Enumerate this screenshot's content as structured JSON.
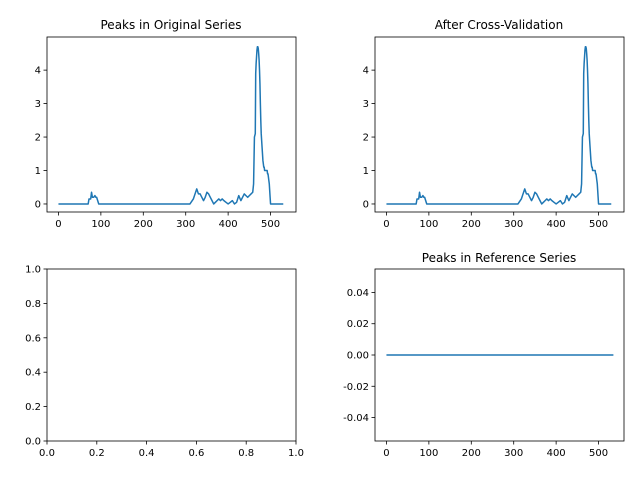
{
  "chart_data": [
    {
      "type": "line",
      "title": "Peaks in Original Series",
      "xlabel": "",
      "ylabel": "",
      "xlim": [
        -27,
        560
      ],
      "ylim": [
        -0.24,
        4.99
      ],
      "grid": false,
      "xticks": [
        0,
        100,
        200,
        300,
        400,
        500
      ],
      "yticks": [
        0,
        1,
        2,
        3,
        4
      ],
      "series": [
        {
          "color": "#1f77b4",
          "x": [
            0,
            70,
            72,
            76,
            78,
            80,
            83,
            86,
            88,
            90,
            95,
            100,
            310,
            318,
            322,
            326,
            330,
            334,
            338,
            342,
            346,
            350,
            354,
            358,
            362,
            366,
            370,
            374,
            378,
            382,
            386,
            390,
            395,
            400,
            405,
            410,
            415,
            420,
            425,
            430,
            434,
            438,
            442,
            446,
            450,
            454,
            458,
            460,
            462,
            464,
            465,
            466,
            467,
            468,
            469,
            470,
            471,
            472,
            473,
            474,
            475,
            476,
            477,
            478,
            479,
            480,
            481,
            482,
            483,
            484,
            485,
            486,
            487,
            488,
            489,
            490,
            491,
            492,
            493,
            494,
            495,
            496,
            497,
            498,
            499,
            500,
            505,
            530
          ],
          "y": [
            0,
            0,
            0.15,
            0.15,
            0.35,
            0.2,
            0.2,
            0.25,
            0.2,
            0.2,
            0,
            0,
            0,
            0.15,
            0.3,
            0.45,
            0.3,
            0.3,
            0.2,
            0.1,
            0.2,
            0.35,
            0.3,
            0.2,
            0.1,
            0.0,
            0.05,
            0.1,
            0.15,
            0.1,
            0.15,
            0.1,
            0.05,
            0.0,
            0.05,
            0.1,
            0.0,
            0.05,
            0.25,
            0.1,
            0.2,
            0.3,
            0.25,
            0.2,
            0.25,
            0.3,
            0.35,
            0.6,
            2.0,
            2.1,
            3.9,
            4.2,
            4.4,
            4.6,
            4.7,
            4.7,
            4.65,
            4.5,
            4.3,
            4.0,
            3.6,
            3.0,
            2.5,
            2.1,
            1.9,
            1.7,
            1.5,
            1.3,
            1.2,
            1.1,
            1.1,
            1.0,
            1.0,
            1.0,
            1.0,
            1.0,
            1.0,
            1.0,
            0.9,
            0.9,
            0.8,
            0.7,
            0.6,
            0.4,
            0.2,
            0,
            0,
            0
          ]
        }
      ]
    },
    {
      "type": "line",
      "title": "After Cross-Validation",
      "xlabel": "",
      "ylabel": "",
      "xlim": [
        -27,
        560
      ],
      "ylim": [
        -0.24,
        4.99
      ],
      "grid": false,
      "xticks": [
        0,
        100,
        200,
        300,
        400,
        500
      ],
      "yticks": [
        0,
        1,
        2,
        3,
        4
      ],
      "series": [
        {
          "color": "#1f77b4",
          "x": [
            0,
            70,
            72,
            76,
            78,
            80,
            83,
            86,
            88,
            90,
            95,
            100,
            310,
            318,
            322,
            326,
            330,
            334,
            338,
            342,
            346,
            350,
            354,
            358,
            362,
            366,
            370,
            374,
            378,
            382,
            386,
            390,
            395,
            400,
            405,
            410,
            415,
            420,
            425,
            430,
            434,
            438,
            442,
            446,
            450,
            454,
            458,
            460,
            462,
            464,
            465,
            466,
            467,
            468,
            469,
            470,
            471,
            472,
            473,
            474,
            475,
            476,
            477,
            478,
            479,
            480,
            481,
            482,
            483,
            484,
            485,
            486,
            487,
            488,
            489,
            490,
            491,
            492,
            493,
            494,
            495,
            496,
            497,
            498,
            499,
            500,
            505,
            530
          ],
          "y": [
            0,
            0,
            0.15,
            0.15,
            0.35,
            0.2,
            0.2,
            0.25,
            0.2,
            0.2,
            0,
            0,
            0,
            0.15,
            0.3,
            0.45,
            0.3,
            0.3,
            0.2,
            0.1,
            0.2,
            0.35,
            0.3,
            0.2,
            0.1,
            0.0,
            0.05,
            0.1,
            0.15,
            0.1,
            0.15,
            0.1,
            0.05,
            0.0,
            0.05,
            0.1,
            0.0,
            0.05,
            0.25,
            0.1,
            0.2,
            0.3,
            0.25,
            0.2,
            0.25,
            0.3,
            0.35,
            0.6,
            2.0,
            2.1,
            3.9,
            4.2,
            4.4,
            4.6,
            4.7,
            4.7,
            4.65,
            4.5,
            4.3,
            4.0,
            3.6,
            3.0,
            2.5,
            2.1,
            1.9,
            1.7,
            1.5,
            1.3,
            1.2,
            1.1,
            1.1,
            1.0,
            1.0,
            1.0,
            1.0,
            1.0,
            1.0,
            1.0,
            0.9,
            0.9,
            0.8,
            0.7,
            0.6,
            0.4,
            0.2,
            0,
            0,
            0
          ]
        }
      ]
    },
    {
      "type": "line",
      "title": "",
      "xlabel": "",
      "ylabel": "",
      "xlim": [
        0,
        1
      ],
      "ylim": [
        0,
        1
      ],
      "grid": false,
      "xticks": [
        0.0,
        0.2,
        0.4,
        0.6,
        0.8,
        1.0
      ],
      "yticks": [
        0.0,
        0.2,
        0.4,
        0.6,
        0.8,
        1.0
      ],
      "tick_decimals": 1,
      "series": []
    },
    {
      "type": "line",
      "title": "Peaks in Reference Series",
      "xlabel": "",
      "ylabel": "",
      "xlim": [
        -27,
        560
      ],
      "ylim": [
        -0.055,
        0.055
      ],
      "grid": false,
      "xticks": [
        0,
        100,
        200,
        300,
        400,
        500
      ],
      "yticks": [
        -0.04,
        -0.02,
        0.0,
        0.02,
        0.04
      ],
      "tick_decimals": 2,
      "series": [
        {
          "color": "#1f77b4",
          "x": [
            0,
            535
          ],
          "y": [
            0,
            0
          ]
        }
      ]
    }
  ]
}
